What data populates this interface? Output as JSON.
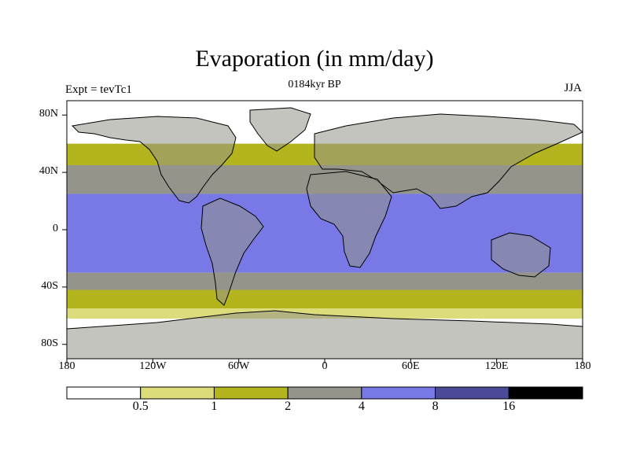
{
  "title": "Evaporation (in mm/day)",
  "left_label": "Expt = tevTc1",
  "center_label": "0184kyr BP",
  "right_label": "JJA",
  "y_axis": {
    "ticks": [
      {
        "value": 80,
        "label": "80N"
      },
      {
        "value": 40,
        "label": "40N"
      },
      {
        "value": 0,
        "label": "0"
      },
      {
        "value": -40,
        "label": "40S"
      },
      {
        "value": -80,
        "label": "80S"
      }
    ]
  },
  "x_axis": {
    "ticks": [
      {
        "value": -180,
        "label": "180"
      },
      {
        "value": -120,
        "label": "120W"
      },
      {
        "value": -60,
        "label": "60W"
      },
      {
        "value": 0,
        "label": "0"
      },
      {
        "value": 60,
        "label": "60E"
      },
      {
        "value": 120,
        "label": "120E"
      },
      {
        "value": 180,
        "label": "180"
      }
    ]
  },
  "colorbar": {
    "colors": [
      "#ffffff",
      "#dcdc7a",
      "#b4b41e",
      "#94948a",
      "#7878e6",
      "#4a4a96",
      "#000000"
    ],
    "boundaries": [
      {
        "value": 0.5,
        "label": "0.5"
      },
      {
        "value": 1,
        "label": "1"
      },
      {
        "value": 2,
        "label": "2"
      },
      {
        "value": 4,
        "label": "4"
      },
      {
        "value": 8,
        "label": "8"
      },
      {
        "value": 16,
        "label": "16"
      }
    ]
  },
  "chart_data": {
    "type": "heatmap",
    "title": "Evaporation (in mm/day)",
    "variable": "Evaporation",
    "units": "mm/day",
    "season": "JJA",
    "experiment": "tevTc1",
    "time": "0184kyr BP",
    "lon_range": [
      -180,
      180
    ],
    "lat_range": [
      -90,
      90
    ],
    "levels": [
      0.5,
      1,
      2,
      4,
      8,
      16
    ],
    "zonal_profile": [
      {
        "lat_range": [
          60,
          90
        ],
        "ocean_level": 0
      },
      {
        "lat_range": [
          45,
          60
        ],
        "ocean_level": 2
      },
      {
        "lat_range": [
          25,
          45
        ],
        "ocean_level": 3
      },
      {
        "lat_range": [
          -30,
          25
        ],
        "ocean_level": 4
      },
      {
        "lat_range": [
          -42,
          -30
        ],
        "ocean_level": 3
      },
      {
        "lat_range": [
          -55,
          -42
        ],
        "ocean_level": 2
      },
      {
        "lat_range": [
          -62,
          -55
        ],
        "ocean_level": 1
      },
      {
        "lat_range": [
          -90,
          -62
        ],
        "ocean_level": 0
      }
    ]
  }
}
